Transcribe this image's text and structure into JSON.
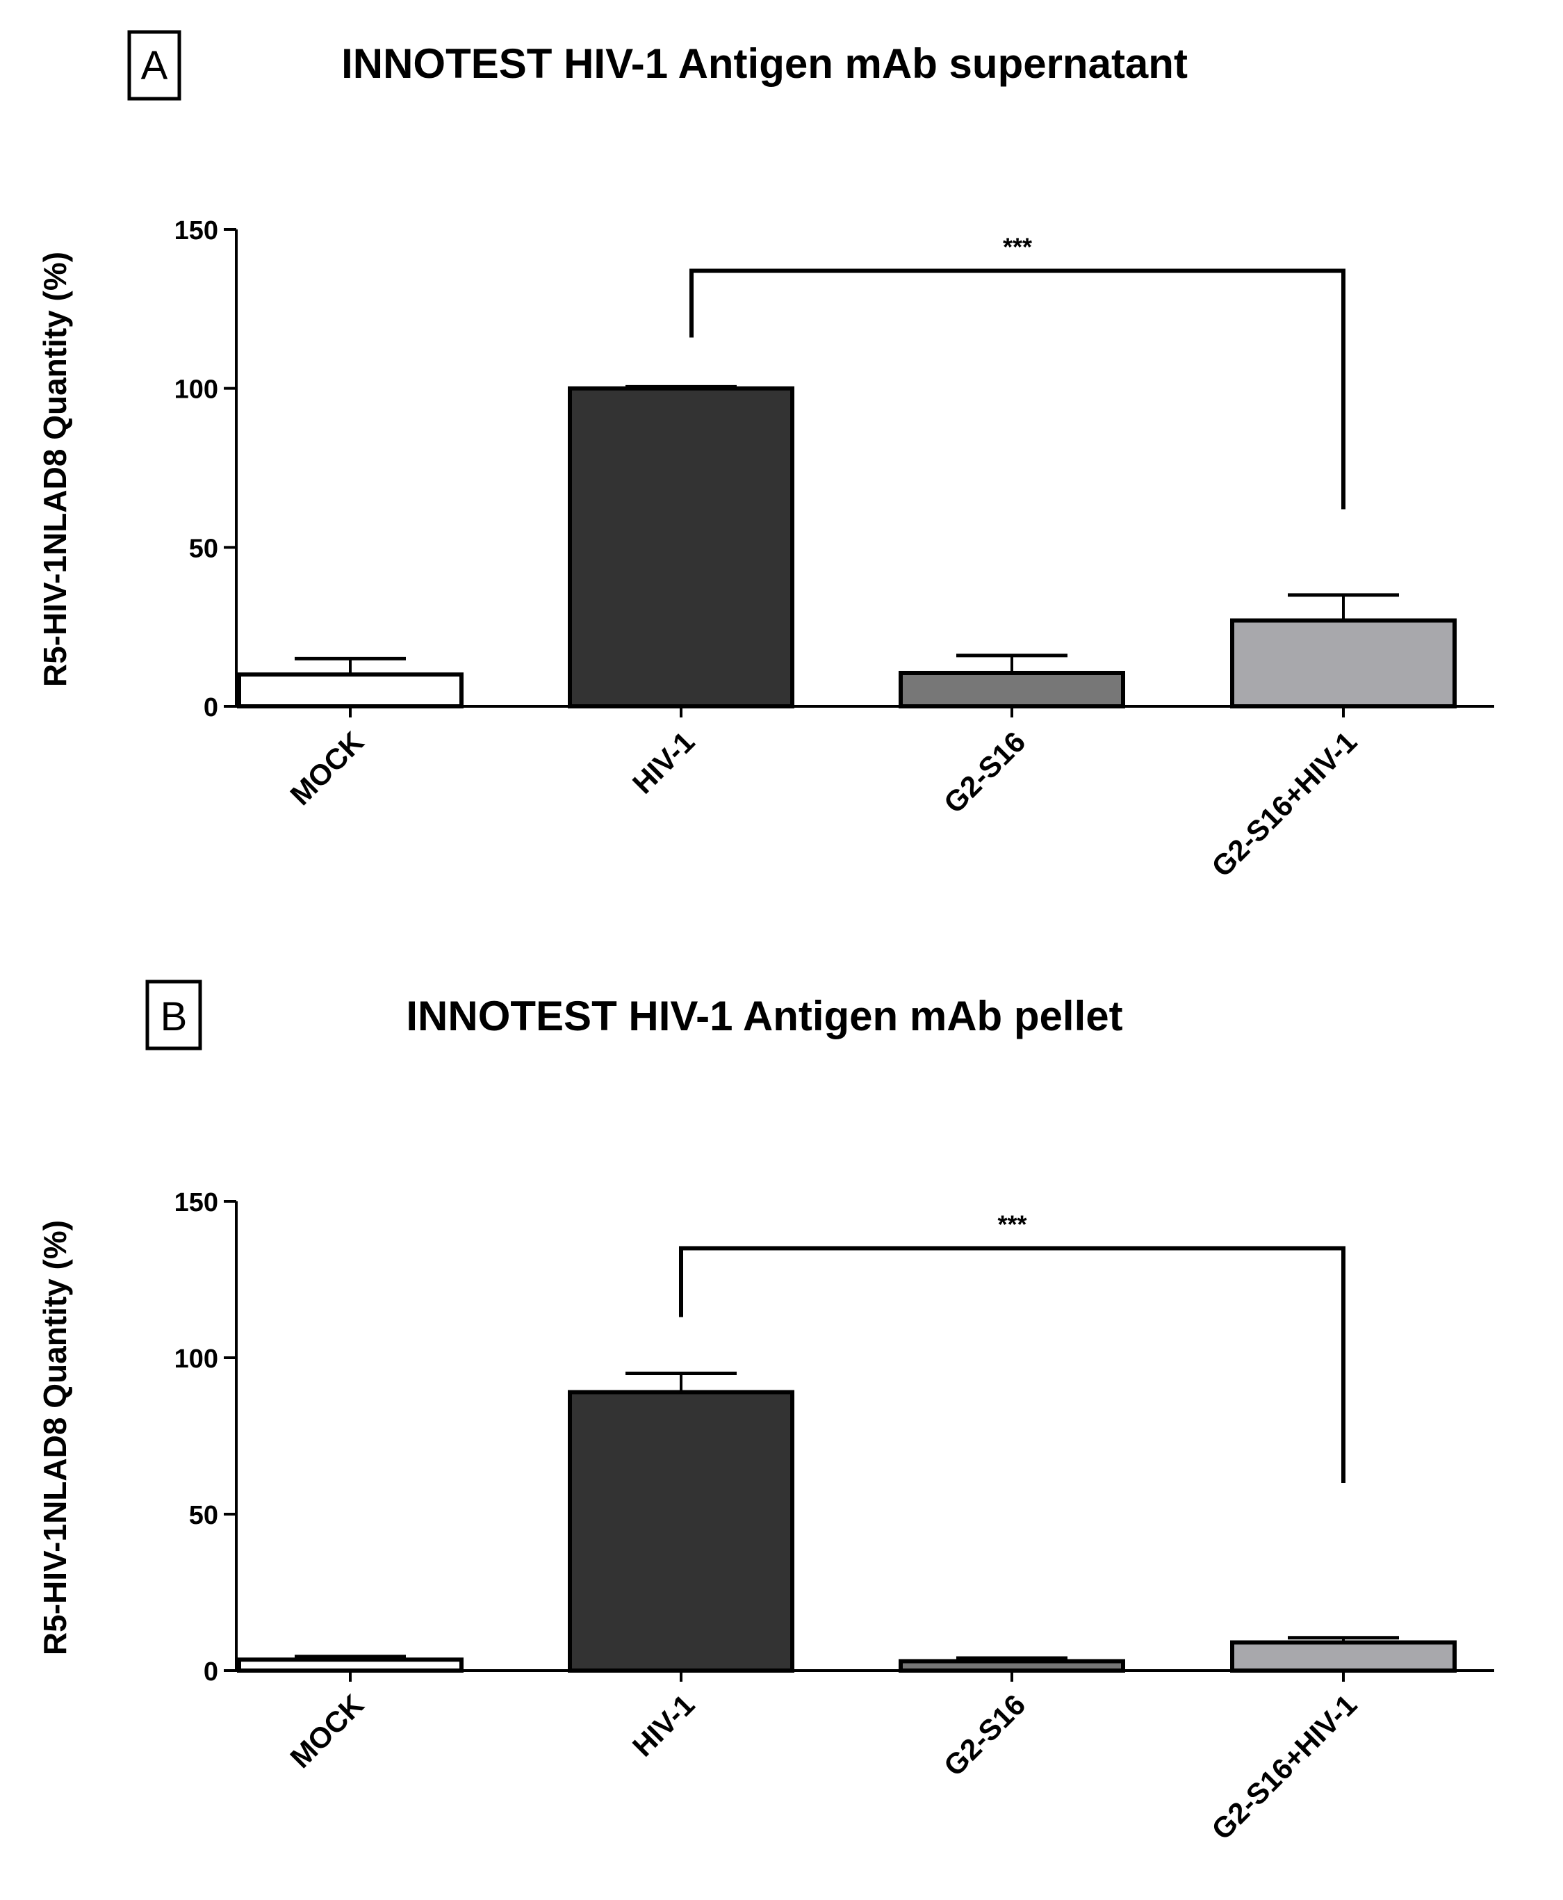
{
  "chart_data": [
    {
      "type": "bar",
      "panel": "A",
      "title": "INNOTEST HIV-1 Antigen mAb supernatant",
      "ylabel": "R5-HIV-1NLAD8  Quantity (%)",
      "xlabel": "",
      "ylim": [
        0,
        150
      ],
      "yticks": [
        0,
        50,
        100,
        150
      ],
      "grid": false,
      "categories": [
        "MOCK",
        "HIV-1",
        "G2-S16",
        "G2-S16+HIV-1"
      ],
      "values": [
        10,
        100,
        10.5,
        27
      ],
      "errors": [
        5,
        0.5,
        5.5,
        8
      ],
      "colors": [
        "#ffffff",
        "#333333",
        "#777777",
        "#a8a8ac"
      ],
      "significance": {
        "from": 1,
        "to": 3,
        "label": "***",
        "y": 137,
        "left_end": 116,
        "right_end": 62
      }
    },
    {
      "type": "bar",
      "panel": "B",
      "title": "INNOTEST HIV-1 Antigen mAb pellet",
      "ylabel": "R5-HIV-1NLAD8  Quantity (%)",
      "xlabel": "",
      "ylim": [
        0,
        150
      ],
      "yticks": [
        0,
        50,
        100,
        150
      ],
      "grid": false,
      "categories": [
        "MOCK",
        "HIV-1",
        "G2-S16",
        "G2-S16+HIV-1"
      ],
      "values": [
        3.5,
        89,
        3,
        9
      ],
      "errors": [
        1,
        6,
        1,
        1.5
      ],
      "colors": [
        "#ffffff",
        "#333333",
        "#777777",
        "#a8a8ac"
      ],
      "significance": {
        "from": 1,
        "to": 3,
        "label": "***",
        "y": 135,
        "left_end": 113,
        "right_end": 60
      }
    }
  ]
}
